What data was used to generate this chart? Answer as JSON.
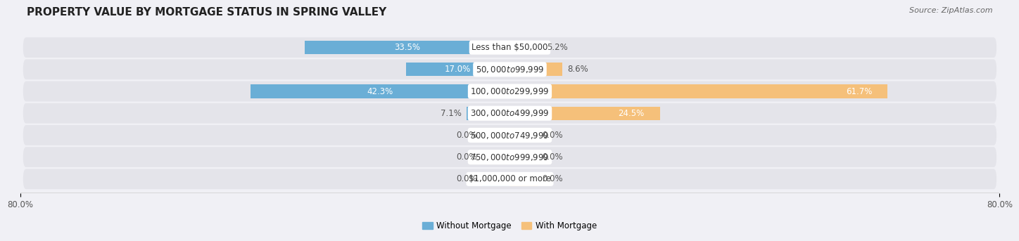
{
  "title": "PROPERTY VALUE BY MORTGAGE STATUS IN SPRING VALLEY",
  "source": "Source: ZipAtlas.com",
  "categories": [
    "Less than $50,000",
    "$50,000 to $99,999",
    "$100,000 to $299,999",
    "$300,000 to $499,999",
    "$500,000 to $749,999",
    "$750,000 to $999,999",
    "$1,000,000 or more"
  ],
  "without_mortgage": [
    33.5,
    17.0,
    42.3,
    7.1,
    0.0,
    0.0,
    0.0
  ],
  "with_mortgage": [
    5.2,
    8.6,
    61.7,
    24.5,
    0.0,
    0.0,
    0.0
  ],
  "color_without": "#6aaed6",
  "color_with": "#f5c07a",
  "color_without_light": "#aed4ee",
  "color_with_light": "#f5d9aa",
  "bar_height": 0.62,
  "stub_value": 4.5,
  "xlim": [
    -80,
    80
  ],
  "xtick_labels_left": "80.0%",
  "xtick_labels_right": "80.0%",
  "bg_row_color": "#e4e4ea",
  "bg_fig_color": "#f0f0f5",
  "title_fontsize": 11,
  "label_fontsize": 8.5,
  "cat_fontsize": 8.5,
  "source_fontsize": 8,
  "value_label_color_dark": "#ffffff",
  "value_label_color_light": "#555555"
}
